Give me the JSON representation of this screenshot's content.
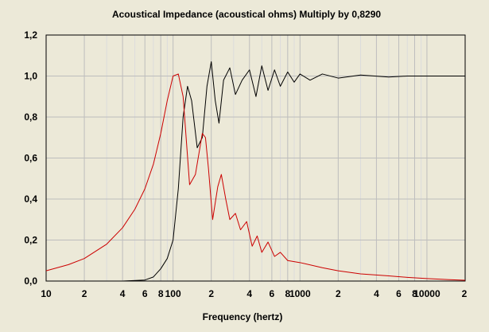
{
  "chart_data": {
    "type": "line",
    "title": "Acoustical Impedance (acoustical ohms)    Multiply by 0,8290",
    "xlabel": "Frequency (hertz)",
    "ylabel": "",
    "xscale": "log",
    "xlim": [
      10,
      20000
    ],
    "ylim": [
      0,
      1.2
    ],
    "grid": true,
    "y_ticks": [
      {
        "value": 0,
        "label": "0,0"
      },
      {
        "value": 0.2,
        "label": "0,2"
      },
      {
        "value": 0.4,
        "label": "0,4"
      },
      {
        "value": 0.6,
        "label": "0,6"
      },
      {
        "value": 0.8,
        "label": "0,8"
      },
      {
        "value": 1.0,
        "label": "1,0"
      },
      {
        "value": 1.2,
        "label": "1,2"
      }
    ],
    "x_ticks": [
      {
        "value": 10,
        "label": "10"
      },
      {
        "value": 20,
        "label": "2"
      },
      {
        "value": 40,
        "label": "4"
      },
      {
        "value": 60,
        "label": "6"
      },
      {
        "value": 80,
        "label": "8"
      },
      {
        "value": 100,
        "label": "100"
      },
      {
        "value": 200,
        "label": "2"
      },
      {
        "value": 400,
        "label": "4"
      },
      {
        "value": 600,
        "label": "6"
      },
      {
        "value": 800,
        "label": "8"
      },
      {
        "value": 1000,
        "label": "1000"
      },
      {
        "value": 2000,
        "label": "2"
      },
      {
        "value": 4000,
        "label": "4"
      },
      {
        "value": 6000,
        "label": "6"
      },
      {
        "value": 8000,
        "label": "8"
      },
      {
        "value": 10000,
        "label": "10000"
      },
      {
        "value": 20000,
        "label": "2"
      }
    ],
    "series": [
      {
        "color": "#000000",
        "x": [
          10,
          40,
          60,
          70,
          80,
          90,
          100,
          110,
          120,
          130,
          140,
          155,
          170,
          185,
          200,
          215,
          230,
          250,
          280,
          310,
          350,
          400,
          450,
          500,
          560,
          630,
          700,
          800,
          900,
          1000,
          1200,
          1500,
          2000,
          3000,
          5000,
          7000,
          10000,
          15000,
          20000
        ],
        "y": [
          0.0,
          0.0,
          0.005,
          0.02,
          0.06,
          0.11,
          0.2,
          0.45,
          0.8,
          0.95,
          0.88,
          0.65,
          0.7,
          0.95,
          1.07,
          0.88,
          0.77,
          0.98,
          1.04,
          0.91,
          0.98,
          1.03,
          0.9,
          1.05,
          0.93,
          1.03,
          0.95,
          1.02,
          0.97,
          1.01,
          0.98,
          1.01,
          0.99,
          1.005,
          0.995,
          1.0,
          1.0,
          1.0,
          1.0
        ]
      },
      {
        "color": "#cc0000",
        "x": [
          10,
          15,
          20,
          30,
          40,
          50,
          60,
          70,
          80,
          90,
          100,
          110,
          120,
          135,
          150,
          170,
          180,
          190,
          205,
          225,
          240,
          260,
          280,
          310,
          340,
          380,
          420,
          460,
          500,
          560,
          630,
          700,
          800,
          1000,
          1500,
          2000,
          3000,
          5000,
          7000,
          10000,
          15000,
          20000
        ],
        "y": [
          0.05,
          0.08,
          0.11,
          0.18,
          0.26,
          0.35,
          0.45,
          0.57,
          0.72,
          0.88,
          1.0,
          1.01,
          0.9,
          0.47,
          0.52,
          0.72,
          0.7,
          0.55,
          0.3,
          0.46,
          0.52,
          0.4,
          0.3,
          0.33,
          0.25,
          0.29,
          0.17,
          0.22,
          0.14,
          0.19,
          0.12,
          0.14,
          0.1,
          0.09,
          0.065,
          0.05,
          0.035,
          0.025,
          0.018,
          0.012,
          0.007,
          0.004
        ]
      }
    ]
  }
}
